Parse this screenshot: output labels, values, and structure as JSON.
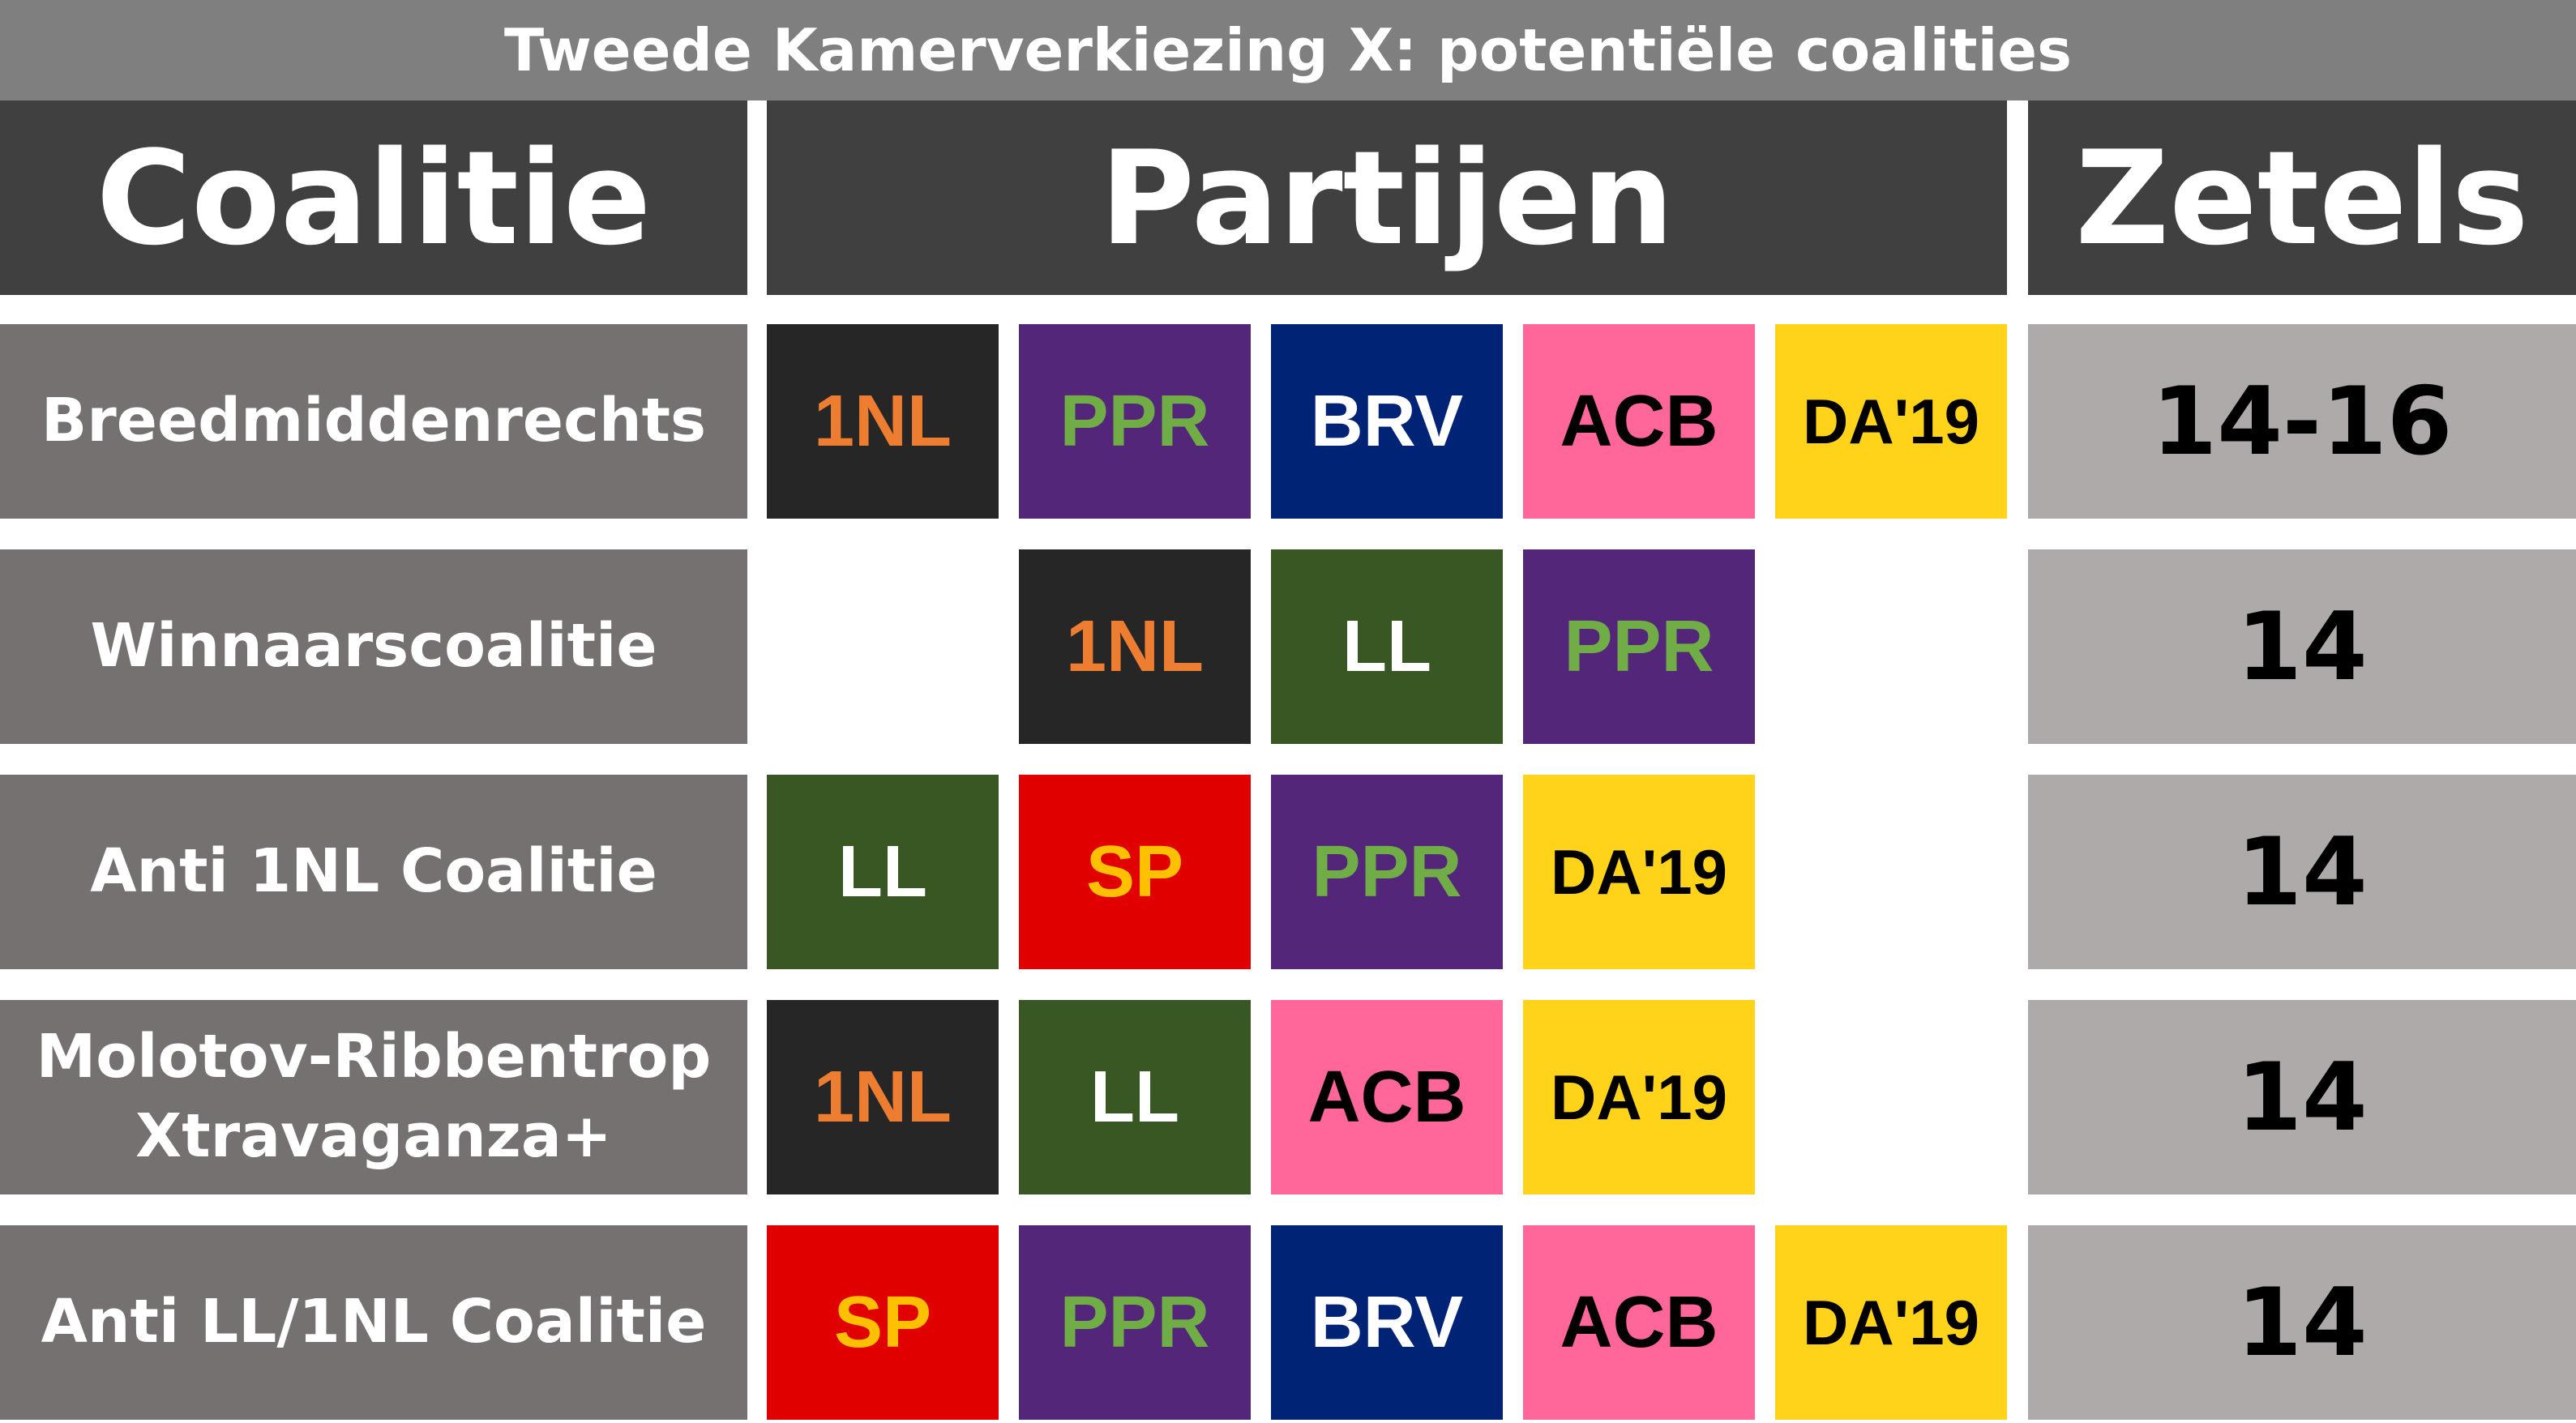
{
  "title": "Tweede Kamerverkiezing X: potentiële coalities",
  "headers": {
    "coalitie": "Coalitie",
    "partijen": "Partijen",
    "zetels": "Zetels"
  },
  "parties": {
    "1NL": {
      "label": "1NL",
      "bg": "#262626",
      "fg": "#ed7d31"
    },
    "PPR": {
      "label": "PPR",
      "bg": "#53267a",
      "fg": "#70ad47"
    },
    "BRV": {
      "label": "BRV",
      "bg": "#002376",
      "fg": "#ffffff"
    },
    "ACB": {
      "label": "ACB",
      "bg": "#ff6699",
      "fg": "#000000"
    },
    "DA19": {
      "label": "DA'19",
      "bg": "#ffd319",
      "fg": "#000000"
    },
    "LL": {
      "label": "LL",
      "bg": "#385723",
      "fg": "#ffffff"
    },
    "SP": {
      "label": "SP",
      "bg": "#e00000",
      "fg": "#ffc000"
    }
  },
  "rows": [
    {
      "name": "Breedmiddenrechts",
      "seats": "14-16",
      "parties": [
        "1NL",
        "PPR",
        "BRV",
        "ACB",
        "DA'19"
      ]
    },
    {
      "name": "Winnaarscoalitie",
      "seats": "14",
      "parties": [
        "1NL",
        "LL",
        "PPR"
      ]
    },
    {
      "name": "Anti 1NL Coalitie",
      "seats": "14",
      "parties": [
        "LL",
        "SP",
        "PPR",
        "DA'19"
      ]
    },
    {
      "name": "Molotov-Ribbentrop\nXtravaganza+",
      "seats": "14",
      "parties": [
        "1NL",
        "LL",
        "ACB",
        "DA'19"
      ]
    },
    {
      "name": "Anti LL/1NL Coalitie",
      "seats": "14",
      "parties": [
        "SP",
        "PPR",
        "BRV",
        "ACB",
        "DA'19"
      ]
    }
  ]
}
